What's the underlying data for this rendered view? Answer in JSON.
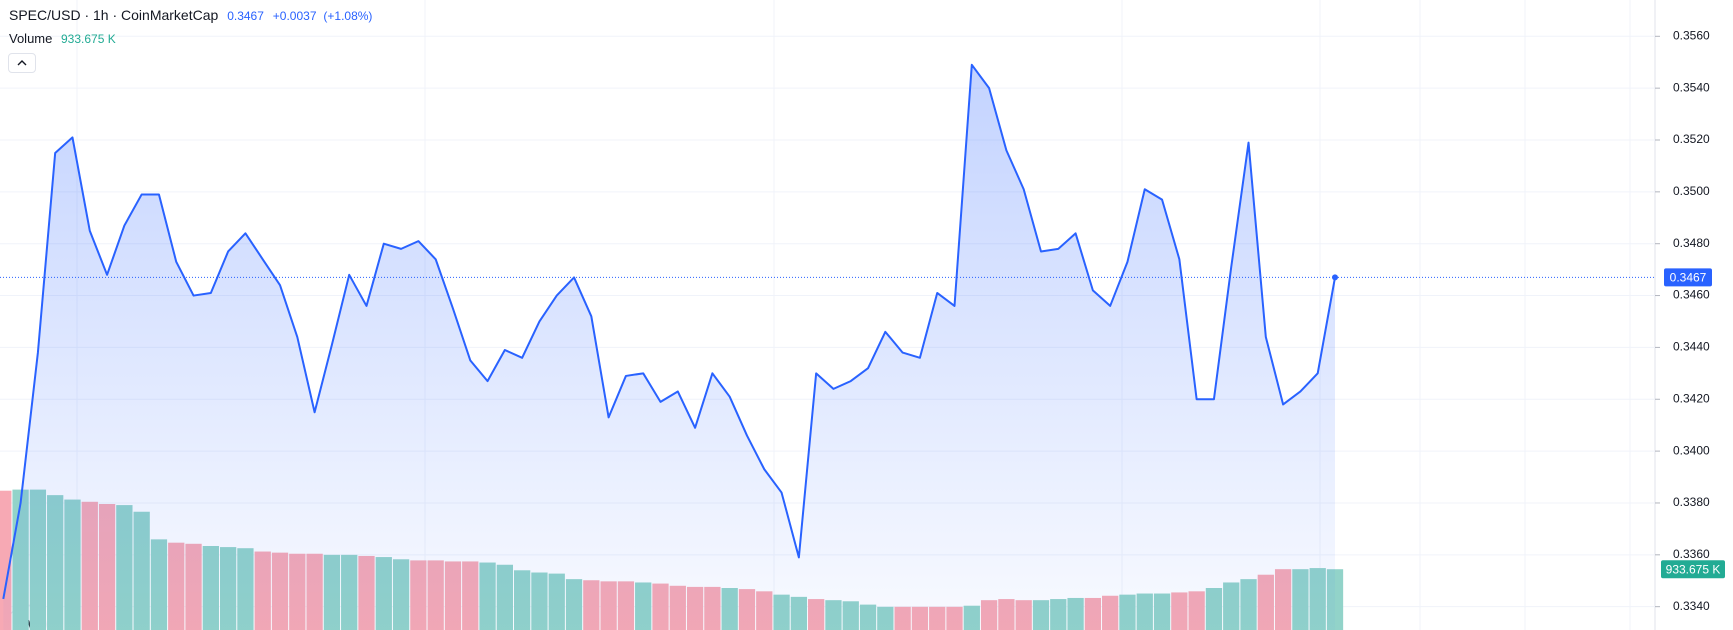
{
  "chart_data": {
    "type": "area",
    "series": [
      {
        "name": "SPEC/USD · 1h · CoinMarketCap",
        "color": "#2962ff",
        "values": [
          0.3343,
          0.338,
          0.3438,
          0.3515,
          0.3521,
          0.3485,
          0.3468,
          0.3487,
          0.3499,
          0.3499,
          0.3473,
          0.346,
          0.3461,
          0.3477,
          0.3484,
          0.3474,
          0.3464,
          0.3444,
          0.3415,
          0.3441,
          0.3468,
          0.3456,
          0.348,
          0.3478,
          0.3481,
          0.3474,
          0.3455,
          0.3435,
          0.3427,
          0.3439,
          0.3436,
          0.345,
          0.346,
          0.3467,
          0.3452,
          0.3413,
          0.3429,
          0.343,
          0.3419,
          0.3423,
          0.3409,
          0.343,
          0.3421,
          0.3406,
          0.3393,
          0.3384,
          0.3359,
          0.343,
          0.3424,
          0.3427,
          0.3432,
          0.3446,
          0.3438,
          0.3436,
          0.3461,
          0.3456,
          0.3549,
          0.354,
          0.3516,
          0.3501,
          0.3477,
          0.3478,
          0.3484,
          0.3462,
          0.3456,
          0.3473,
          0.3501,
          0.3497,
          0.3474,
          0.342,
          0.342,
          0.3471,
          0.3519,
          0.3444,
          0.3418,
          0.3423,
          0.343,
          0.3467
        ]
      }
    ],
    "change": "+0.0037",
    "change_pct": "(+1.08%)",
    "last_price": 0.3467,
    "ylim": [
      0.3331,
      0.3574
    ],
    "yticks": [
      {
        "value": 0.334,
        "label": "0.3340"
      },
      {
        "value": 0.336,
        "label": "0.3360"
      },
      {
        "value": 0.338,
        "label": "0.3380"
      },
      {
        "value": 0.34,
        "label": "0.3400"
      },
      {
        "value": 0.342,
        "label": "0.3420"
      },
      {
        "value": 0.344,
        "label": "0.3440"
      },
      {
        "value": 0.346,
        "label": "0.3460"
      },
      {
        "value": 0.348,
        "label": "0.3480"
      },
      {
        "value": 0.35,
        "label": "0.3500"
      },
      {
        "value": 0.352,
        "label": "0.3520"
      },
      {
        "value": 0.354,
        "label": "0.3540"
      },
      {
        "value": 0.356,
        "label": "0.3560"
      }
    ],
    "grid": true,
    "volume": {
      "name": "Volume",
      "last_label": "933.675 K",
      "ylim": [
        0,
        2457000
      ],
      "values": [
        2139000,
        2156000,
        2156000,
        2071000,
        2003000,
        1969000,
        1935000,
        1918000,
        1816000,
        1392000,
        1341000,
        1324000,
        1290000,
        1273000,
        1256000,
        1205000,
        1188000,
        1171000,
        1171000,
        1154000,
        1154000,
        1137000,
        1120000,
        1086000,
        1069000,
        1069000,
        1053000,
        1053000,
        1036000,
        1002000,
        917000,
        883000,
        866000,
        781000,
        764000,
        747000,
        747000,
        730000,
        713000,
        679000,
        662000,
        662000,
        645000,
        628000,
        594000,
        543000,
        509000,
        475000,
        458000,
        441000,
        390000,
        356000,
        356000,
        356000,
        356000,
        356000,
        373000,
        458000,
        475000,
        458000,
        458000,
        475000,
        492000,
        492000,
        526000,
        543000,
        560000,
        560000,
        577000,
        594000,
        645000,
        730000,
        781000,
        849000,
        934000,
        934000,
        951000,
        933675
      ],
      "colors": [
        "#f7a9b4",
        "#92d3c9",
        "#92d3c9",
        "#92d3c9",
        "#92d3c9",
        "#f7a9b4",
        "#f7a9b4",
        "#92d3c9",
        "#92d3c9",
        "#92d3c9",
        "#f7a9b4",
        "#f7a9b4",
        "#92d3c9",
        "#92d3c9",
        "#92d3c9",
        "#f7a9b4",
        "#f7a9b4",
        "#f7a9b4",
        "#f7a9b4",
        "#92d3c9",
        "#92d3c9",
        "#f7a9b4",
        "#92d3c9",
        "#92d3c9",
        "#f7a9b4",
        "#f7a9b4",
        "#f7a9b4",
        "#f7a9b4",
        "#92d3c9",
        "#92d3c9",
        "#92d3c9",
        "#92d3c9",
        "#92d3c9",
        "#92d3c9",
        "#f7a9b4",
        "#f7a9b4",
        "#f7a9b4",
        "#92d3c9",
        "#f7a9b4",
        "#f7a9b4",
        "#f7a9b4",
        "#f7a9b4",
        "#92d3c9",
        "#f7a9b4",
        "#f7a9b4",
        "#92d3c9",
        "#92d3c9",
        "#f7a9b4",
        "#92d3c9",
        "#92d3c9",
        "#92d3c9",
        "#92d3c9",
        "#f7a9b4",
        "#f7a9b4",
        "#f7a9b4",
        "#f7a9b4",
        "#92d3c9",
        "#f7a9b4",
        "#f7a9b4",
        "#f7a9b4",
        "#92d3c9",
        "#92d3c9",
        "#92d3c9",
        "#f7a9b4",
        "#f7a9b4",
        "#92d3c9",
        "#92d3c9",
        "#92d3c9",
        "#f7a9b4",
        "#f7a9b4",
        "#92d3c9",
        "#92d3c9",
        "#92d3c9",
        "#f7a9b4",
        "#f7a9b4",
        "#92d3c9",
        "#92d3c9",
        "#92d3c9"
      ],
      "badge_color": "#22ab94"
    }
  }
}
